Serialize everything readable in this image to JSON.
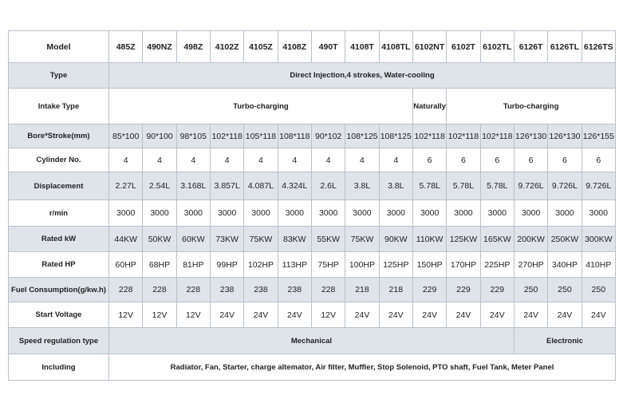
{
  "table": {
    "header": {
      "label": "Model",
      "models": [
        "485Z",
        "490NZ",
        "498Z",
        "4102Z",
        "4105Z",
        "4108Z",
        "490T",
        "4108T",
        "4108TL",
        "6102NT",
        "6102T",
        "6102TL",
        "6126T",
        "6126TL",
        "6126TS"
      ]
    },
    "rows": [
      {
        "label": "Type",
        "cells": [
          "Direct Injection,4 strokes, Water-cooling"
        ]
      },
      {
        "label": "Intake Type",
        "cells": [
          "Turbo-charging",
          "Naturally",
          "Turbo-charging"
        ]
      },
      {
        "label": "Bore*Stroke(mm)",
        "cells": [
          "85*100",
          "90*100",
          "98*105",
          "102*118",
          "105*118",
          "108*118",
          "90*102",
          "108*125",
          "108*125",
          "102*118",
          "102*118",
          "102*118",
          "126*130",
          "126*130",
          "126*155"
        ]
      },
      {
        "label": "Cylinder No.",
        "cells": [
          "4",
          "4",
          "4",
          "4",
          "4",
          "4",
          "4",
          "4",
          "4",
          "6",
          "6",
          "6",
          "6",
          "6",
          "6"
        ]
      },
      {
        "label": "Displacement",
        "cells": [
          "2.27L",
          "2.54L",
          "3.168L",
          "3.857L",
          "4.087L",
          "4.324L",
          "2.6L",
          "3.8L",
          "3.8L",
          "5.78L",
          "5.78L",
          "5.78L",
          "9.726L",
          "9.726L",
          "9.726L"
        ]
      },
      {
        "label": "r/min",
        "cells": [
          "3000",
          "3000",
          "3000",
          "3000",
          "3000",
          "3000",
          "3000",
          "3000",
          "3000",
          "3000",
          "3000",
          "3000",
          "3000",
          "3000",
          "3000"
        ]
      },
      {
        "label": "Rated kW",
        "cells": [
          "44KW",
          "50KW",
          "60KW",
          "73KW",
          "75KW",
          "83KW",
          "55KW",
          "75KW",
          "90KW",
          "110KW",
          "125KW",
          "165KW",
          "200KW",
          "250KW",
          "300KW"
        ]
      },
      {
        "label": "Rated HP",
        "cells": [
          "60HP",
          "68HP",
          "81HP",
          "99HP",
          "102HP",
          "113HP",
          "75HP",
          "100HP",
          "125HP",
          "150HP",
          "170HP",
          "225HP",
          "270HP",
          "340HP",
          "410HP"
        ]
      },
      {
        "label": "Fuel Consumption(g/kw.h)",
        "cells": [
          "228",
          "228",
          "228",
          "238",
          "238",
          "238",
          "228",
          "218",
          "218",
          "229",
          "229",
          "229",
          "250",
          "250",
          "250"
        ]
      },
      {
        "label": "Start Voltage",
        "cells": [
          "12V",
          "12V",
          "12V",
          "24V",
          "24V",
          "24V",
          "12V",
          "24V",
          "24V",
          "24V",
          "24V",
          "24V",
          "24V",
          "24V",
          "24V"
        ]
      },
      {
        "label": "Speed regulation type",
        "cells": [
          "Mechanical",
          "Electronic"
        ]
      },
      {
        "label": "Including",
        "cells": [
          "Radiator, Fan, Starter, charge altemator, Air filter, Muffler, Stop Solenoid, PTO shaft, Fuel Tank, Meter Panel"
        ]
      }
    ]
  }
}
